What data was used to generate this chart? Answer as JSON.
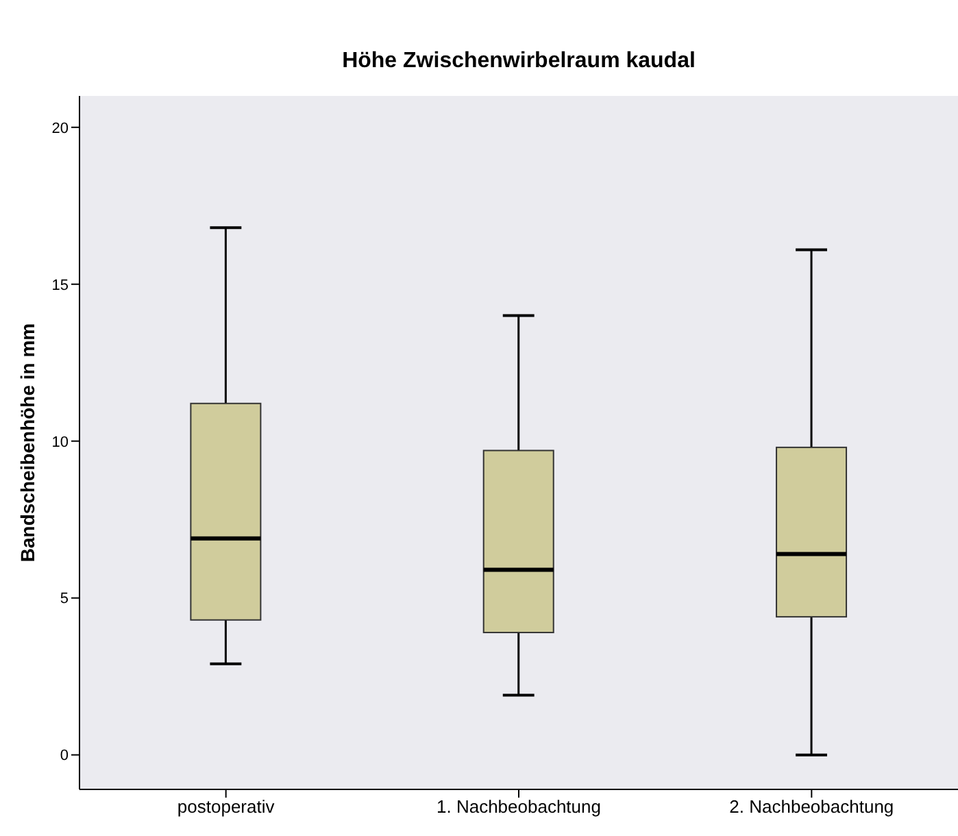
{
  "chart_data": {
    "type": "box",
    "title": "Höhe Zwischenwirbelraum kaudal",
    "ylabel": "Bandscheibenhöhe in mm",
    "categories": [
      "postoperativ",
      "1. Nachbeobachtung",
      "2. Nachbeobachtung"
    ],
    "boxes": [
      {
        "low": 2.9,
        "q1": 4.3,
        "median": 6.9,
        "q3": 11.2,
        "high": 16.8
      },
      {
        "low": 1.9,
        "q1": 3.9,
        "median": 5.9,
        "q3": 9.7,
        "high": 14.0
      },
      {
        "low": 0,
        "q1": 4.4,
        "median": 6.4,
        "q3": 9.8,
        "high": 16.1
      }
    ],
    "color": "#d0cc9c",
    "ylim": [
      -1.1,
      21
    ],
    "yticks": [
      0,
      5,
      10,
      15,
      20
    ],
    "grid": false
  }
}
